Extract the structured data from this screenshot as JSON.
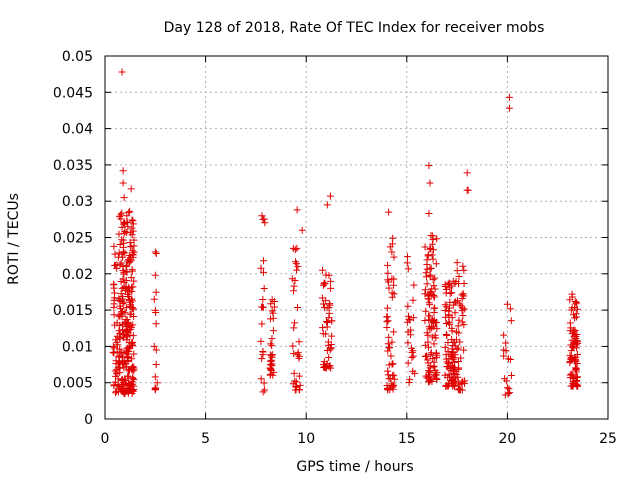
{
  "chart_data": {
    "type": "scatter",
    "title": "Day 128 of 2018, Rate Of TEC Index for receiver mobs",
    "xlabel": "GPS time / hours",
    "ylabel": "ROTI / TECUs",
    "xlim": [
      0,
      25
    ],
    "ylim": [
      0,
      0.05
    ],
    "xticks": [
      0,
      5,
      10,
      15,
      20,
      25
    ],
    "xtick_labels": [
      "0",
      "5",
      "10",
      "15",
      "20",
      "25"
    ],
    "yticks": [
      0,
      0.005,
      0.01,
      0.015,
      0.02,
      0.025,
      0.03,
      0.035,
      0.04,
      0.045,
      0.05
    ],
    "ytick_labels": [
      "0",
      "0.005",
      "0.01",
      "0.015",
      "0.02",
      "0.025",
      "0.03",
      "0.035",
      "0.04",
      "0.045",
      "0.05"
    ],
    "grid": true,
    "marker": "+",
    "series": [
      {
        "name": "ROTI",
        "color": "#e00000",
        "clusters": [
          {
            "x_range": [
              0.4,
              0.65
            ],
            "y_range": [
              0.0035,
              0.024
            ],
            "count": 40
          },
          {
            "x_range": [
              0.65,
              1.45
            ],
            "y_range": [
              0.0035,
              0.029
            ],
            "count": 260
          },
          {
            "x_range": [
              2.45,
              2.6
            ],
            "y_range": [
              0.004,
              0.023
            ],
            "count": 10
          },
          {
            "x_range": [
              7.75,
              7.95
            ],
            "y_range": [
              0.0035,
              0.028
            ],
            "count": 20
          },
          {
            "x_range": [
              8.2,
              8.45
            ],
            "y_range": [
              0.006,
              0.0165
            ],
            "count": 30
          },
          {
            "x_range": [
              9.3,
              9.7
            ],
            "y_range": [
              0.004,
              0.026
            ],
            "count": 35
          },
          {
            "x_range": [
              10.8,
              11.3
            ],
            "y_range": [
              0.007,
              0.021
            ],
            "count": 50
          },
          {
            "x_range": [
              14.0,
              14.4
            ],
            "y_range": [
              0.004,
              0.0245
            ],
            "count": 50
          },
          {
            "x_range": [
              15.0,
              15.4
            ],
            "y_range": [
              0.005,
              0.0235
            ],
            "count": 25
          },
          {
            "x_range": [
              15.9,
              16.5
            ],
            "y_range": [
              0.005,
              0.026
            ],
            "count": 110
          },
          {
            "x_range": [
              16.9,
              17.4
            ],
            "y_range": [
              0.0045,
              0.019
            ],
            "count": 90
          },
          {
            "x_range": [
              17.3,
              17.9
            ],
            "y_range": [
              0.004,
              0.022
            ],
            "count": 60
          },
          {
            "x_range": [
              19.8,
              20.2
            ],
            "y_range": [
              0.003,
              0.016
            ],
            "count": 12
          },
          {
            "x_range": [
              23.1,
              23.5
            ],
            "y_range": [
              0.0045,
              0.0175
            ],
            "count": 90
          }
        ],
        "points": [
          [
            0.85,
            0.0478
          ],
          [
            20.1,
            0.0443
          ],
          [
            20.1,
            0.0428
          ],
          [
            0.9,
            0.0342
          ],
          [
            0.9,
            0.0325
          ],
          [
            0.95,
            0.0305
          ],
          [
            1.3,
            0.0317
          ],
          [
            11.2,
            0.0307
          ],
          [
            11.05,
            0.0295
          ],
          [
            9.55,
            0.0288
          ],
          [
            9.8,
            0.026
          ],
          [
            14.1,
            0.0285
          ],
          [
            16.1,
            0.0349
          ],
          [
            16.15,
            0.0325
          ],
          [
            16.1,
            0.0283
          ],
          [
            18.0,
            0.0339
          ],
          [
            18.05,
            0.0315
          ],
          [
            18.0,
            0.0315
          ],
          [
            7.8,
            0.028
          ],
          [
            7.85,
            0.0275
          ],
          [
            16.3,
            0.0247
          ],
          [
            14.3,
            0.0249
          ],
          [
            2.5,
            0.023
          ],
          [
            2.5,
            0.0198
          ],
          [
            2.45,
            0.0165
          ],
          [
            2.45,
            0.01
          ],
          [
            2.55,
            0.0095
          ],
          [
            2.5,
            0.0058
          ],
          [
            2.5,
            0.0041
          ],
          [
            20.0,
            0.0158
          ],
          [
            20.05,
            0.0083
          ],
          [
            20.15,
            0.0082
          ],
          [
            20.0,
            0.0043
          ],
          [
            20.05,
            0.0035
          ],
          [
            20.2,
            0.006
          ]
        ]
      }
    ]
  }
}
